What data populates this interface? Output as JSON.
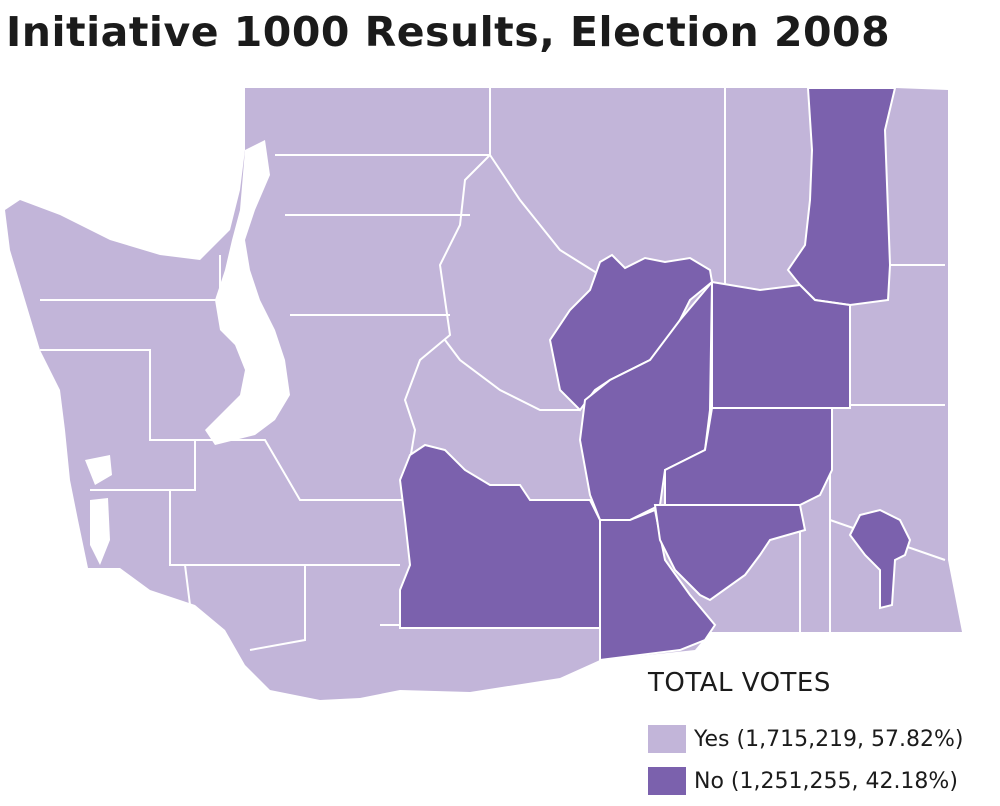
{
  "title": "Initiative 1000 Results, Election 2008",
  "legend": {
    "title": "TOTAL VOTES",
    "yes_label": "Yes (1,715,219, 57.82%)",
    "no_label": "No (1,251,255, 42.18%)"
  },
  "colors": {
    "yes": "#c2b5d9",
    "no": "#7b61ad",
    "border": "#ffffff",
    "water": "#ffffff"
  },
  "results": {
    "yes": {
      "votes": 1715219,
      "percent": 57.82
    },
    "no": {
      "votes": 1251255,
      "percent": 42.18
    }
  },
  "counties_no": [
    "Okanogan/Douglas region",
    "Grant",
    "Lincoln",
    "Adams",
    "Franklin",
    "Benton",
    "Yakima",
    "Ferry",
    "Garfield"
  ]
}
